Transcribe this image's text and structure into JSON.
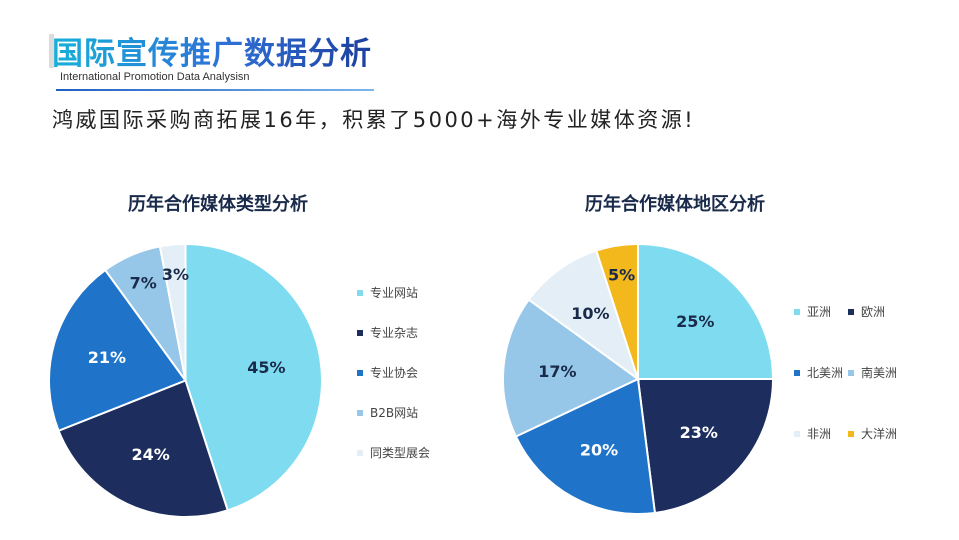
{
  "header": {
    "title": "国际宣传推广数据分析",
    "subtitle": "International Promotion Data Analysisn",
    "headline": "鸿威国际采购商拓展16年，积累了5000+海外专业媒体资源!"
  },
  "chart_data": [
    {
      "type": "pie",
      "title": "历年合作媒体类型分析",
      "categories": [
        "专业网站",
        "专业杂志",
        "专业协会",
        "B2B网站",
        "同类型展会"
      ],
      "values": [
        45,
        24,
        21,
        7,
        3
      ],
      "labels": [
        "45%",
        "24%",
        "21%",
        "7%",
        "3%"
      ],
      "colors": [
        "#7fdcf0",
        "#1c2d5e",
        "#1f74c9",
        "#96c6e8",
        "#e3eef6"
      ],
      "legend_position": "right"
    },
    {
      "type": "pie",
      "title": "历年合作媒体地区分析",
      "categories": [
        "亚洲",
        "欧洲",
        "北美洲",
        "南美洲",
        "非洲",
        "大洋洲"
      ],
      "values": [
        25,
        23,
        20,
        17,
        10,
        5
      ],
      "labels": [
        "25%",
        "23%",
        "20%",
        "17%",
        "10%",
        "5%"
      ],
      "colors": [
        "#7fdcf0",
        "#1c2d5e",
        "#1f74c9",
        "#96c6e8",
        "#e3eef6",
        "#f2b81c"
      ],
      "legend_position": "right"
    }
  ]
}
